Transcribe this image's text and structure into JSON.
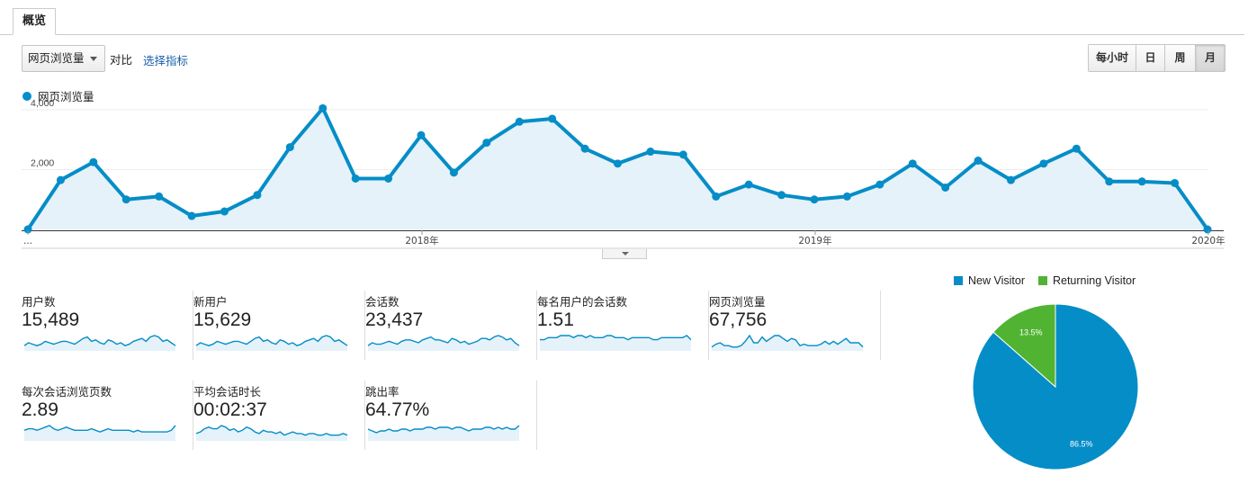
{
  "tab": {
    "label": "概览"
  },
  "controls": {
    "metric_select": "网页浏览量",
    "compare_label": "对比",
    "select_metric": "选择指标",
    "periods": [
      {
        "label": "每小时",
        "active": false
      },
      {
        "label": "日",
        "active": false
      },
      {
        "label": "周",
        "active": false
      },
      {
        "label": "月",
        "active": true
      }
    ]
  },
  "colors": {
    "series": "#058dc7",
    "area": "#e5f2f9",
    "returning": "#50b432",
    "grid": "#ececec"
  },
  "chart_data": [
    {
      "type": "line",
      "series": [
        {
          "name": "网页浏览量",
          "values": [
            0,
            1650,
            2250,
            1000,
            1100,
            450,
            600,
            1150,
            2750,
            4050,
            1700,
            1700,
            3150,
            1900,
            2900,
            3600,
            3700,
            2700,
            2200,
            2600,
            2500,
            1100,
            1500,
            1150,
            1000,
            1100,
            1500,
            2200,
            1400,
            2300,
            1650,
            2200,
            2700,
            1600,
            1600,
            1550,
            0
          ]
        }
      ],
      "x_tick_labels": [
        "...",
        "2018年",
        "2019年",
        "2020年"
      ],
      "y_tick_labels": [
        "4,000",
        "2,000"
      ],
      "ylim": [
        0,
        4000
      ],
      "grid": true
    },
    {
      "type": "pie",
      "categories": [
        "New Visitor",
        "Returning Visitor"
      ],
      "values": [
        86.5,
        13.5
      ],
      "slice_labels": [
        "86.5%",
        "13.5%"
      ],
      "colors": [
        "#058dc7",
        "#50b432"
      ],
      "legend": "top"
    }
  ],
  "metrics": [
    {
      "label": "用户数",
      "value": "15,489",
      "spark": [
        3,
        5,
        4,
        3,
        4,
        6,
        5,
        4,
        5,
        6,
        6,
        5,
        4,
        6,
        8,
        9,
        6,
        7,
        5,
        4,
        7,
        6,
        4,
        5,
        3,
        4,
        6,
        7,
        8,
        6,
        9,
        10,
        9,
        6,
        7,
        5,
        3
      ]
    },
    {
      "label": "新用户",
      "value": "15,629",
      "spark": [
        3,
        5,
        4,
        3,
        4,
        6,
        5,
        4,
        5,
        6,
        6,
        5,
        4,
        6,
        8,
        9,
        6,
        7,
        5,
        4,
        7,
        6,
        4,
        5,
        3,
        4,
        6,
        7,
        8,
        6,
        9,
        10,
        9,
        6,
        7,
        5,
        3
      ]
    },
    {
      "label": "会话数",
      "value": "23,437",
      "spark": [
        3,
        5,
        4,
        4,
        5,
        6,
        5,
        4,
        6,
        7,
        7,
        6,
        5,
        7,
        8,
        9,
        7,
        7,
        6,
        5,
        8,
        7,
        5,
        6,
        4,
        5,
        6,
        8,
        8,
        7,
        9,
        10,
        9,
        7,
        8,
        5,
        3
      ]
    },
    {
      "label": "每名用户的会话数",
      "value": "1.51",
      "spark": [
        5,
        5,
        6,
        6,
        6,
        7,
        7,
        7,
        6,
        7,
        7,
        6,
        7,
        6,
        6,
        6,
        7,
        7,
        6,
        6,
        6,
        5,
        6,
        6,
        6,
        6,
        6,
        5,
        5,
        6,
        6,
        6,
        6,
        6,
        6,
        7,
        5
      ]
    },
    {
      "label": "网页浏览量",
      "value": "67,756",
      "spark": [
        2,
        4,
        5,
        3,
        3,
        2,
        2,
        3,
        6,
        10,
        5,
        5,
        9,
        6,
        8,
        10,
        10,
        8,
        6,
        8,
        7,
        3,
        4,
        3,
        3,
        3,
        4,
        6,
        4,
        6,
        4,
        6,
        8,
        5,
        5,
        5,
        2
      ]
    },
    {
      "label": "每次会话浏览页数",
      "value": "2.89",
      "spark": [
        6,
        7,
        7,
        6,
        7,
        8,
        9,
        7,
        6,
        7,
        8,
        7,
        6,
        6,
        6,
        6,
        7,
        6,
        5,
        6,
        7,
        6,
        6,
        6,
        6,
        6,
        5,
        6,
        5,
        5,
        5,
        5,
        5,
        5,
        5,
        6,
        9
      ]
    },
    {
      "label": "平均会话时长",
      "value": "00:02:37",
      "spark": [
        4,
        5,
        7,
        8,
        7,
        7,
        9,
        8,
        6,
        7,
        5,
        6,
        8,
        7,
        5,
        4,
        6,
        5,
        5,
        4,
        5,
        3,
        4,
        5,
        4,
        4,
        3,
        4,
        4,
        3,
        3,
        4,
        3,
        3,
        3,
        4,
        3
      ]
    },
    {
      "label": "跳出率",
      "value": "64.77%",
      "spark": [
        6,
        5,
        4,
        5,
        5,
        6,
        5,
        5,
        6,
        6,
        5,
        6,
        6,
        6,
        7,
        7,
        6,
        7,
        7,
        7,
        6,
        7,
        7,
        6,
        5,
        6,
        6,
        6,
        7,
        7,
        6,
        7,
        6,
        7,
        6,
        6,
        8
      ]
    }
  ]
}
